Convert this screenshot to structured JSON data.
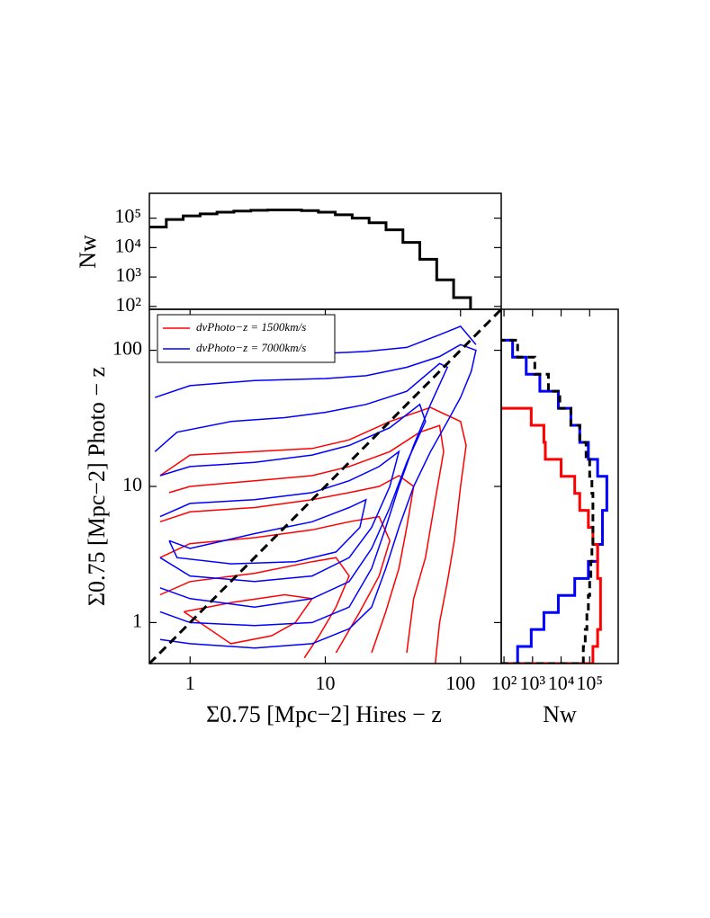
{
  "chart_data": [
    {
      "type": "contour",
      "xlabel": "Σ0.75  [Mpc−2] Hires − z",
      "ylabel": "Σ0.75  [Mpc−2] Photo − z",
      "xlim": [
        0.5,
        200
      ],
      "ylim": [
        0.5,
        200
      ],
      "log_x": true,
      "log_y": true,
      "xticks": [
        1,
        10,
        100
      ],
      "yticks": [
        1,
        10,
        100
      ],
      "legend": "upper left",
      "reference_line": {
        "x": [
          0.5,
          200
        ],
        "y": [
          0.5,
          200
        ],
        "color": "#000000",
        "dashed": true
      },
      "series": [
        {
          "name": "dvPhoto−z = 1500km/s",
          "color": "#ff0000",
          "contours": [
            {
              "x": [
                0.6,
                1,
                3,
                8,
                15,
                30,
                60,
                100,
                110,
                100,
                90,
                80,
                70,
                65
              ],
              "y": [
                12,
                17,
                18,
                19,
                22,
                30,
                38,
                30,
                20,
                10,
                4,
                2,
                1,
                0.5
              ]
            },
            {
              "x": [
                0.7,
                1,
                3,
                8,
                15,
                30,
                50,
                70,
                75,
                65,
                55,
                45,
                40
              ],
              "y": [
                9,
                10,
                11,
                12,
                14,
                18,
                25,
                28,
                18,
                8,
                3,
                1.5,
                0.6
              ]
            },
            {
              "x": [
                0.6,
                1,
                3,
                8,
                15,
                25,
                35,
                45,
                40,
                35,
                28,
                22
              ],
              "y": [
                5.5,
                6.5,
                7,
                8,
                9,
                10,
                12,
                10,
                5,
                2.5,
                1.2,
                0.6
              ]
            },
            {
              "x": [
                0.6,
                1,
                3,
                8,
                15,
                25,
                30,
                25,
                18,
                12
              ],
              "y": [
                3,
                3.8,
                4.2,
                4.8,
                5.5,
                6,
                4,
                2.2,
                1.2,
                0.6
              ]
            },
            {
              "x": [
                0.6,
                1,
                3,
                8,
                12,
                15,
                12,
                9,
                7
              ],
              "y": [
                1.6,
                2,
                2.3,
                2.8,
                3,
                2.2,
                1.3,
                0.8,
                0.55
              ]
            },
            {
              "x": [
                0.9,
                2,
                5,
                8,
                6,
                4,
                2,
                0.9
              ],
              "y": [
                1.2,
                1.4,
                1.6,
                1.5,
                1,
                0.8,
                0.7,
                1.2
              ]
            }
          ]
        },
        {
          "name": "dvPhoto−z = 7000km/s",
          "color": "#0000ff",
          "contours": [
            {
              "x": [
                0.55,
                1,
                3,
                10,
                20,
                40,
                70,
                100,
                130,
                120,
                100,
                80,
                60,
                45,
                35,
                28,
                22,
                15,
                8,
                3,
                1,
                0.6
              ],
              "y": [
                45,
                55,
                60,
                62,
                65,
                75,
                90,
                110,
                100,
                70,
                45,
                30,
                18,
                10,
                5,
                2.5,
                1.3,
                0.9,
                0.7,
                0.65,
                0.7,
                0.75
              ]
            },
            {
              "x": [
                3,
                5,
                10,
                20,
                40,
                70,
                100,
                130
              ],
              "y": [
                85,
                88,
                95,
                98,
                105,
                130,
                150,
                110
              ]
            },
            {
              "x": [
                0.55,
                0.8,
                2,
                5,
                10,
                20,
                40,
                70,
                80,
                60,
                45,
                35,
                28,
                22,
                15,
                8,
                3,
                1,
                0.6
              ],
              "y": [
                18,
                25,
                30,
                32,
                35,
                40,
                50,
                80,
                75,
                40,
                20,
                10,
                5,
                2.5,
                1.3,
                1,
                0.95,
                1,
                1.2
              ]
            },
            {
              "x": [
                0.6,
                1,
                3,
                8,
                15,
                30,
                50,
                55,
                40,
                30,
                22,
                15,
                8,
                3,
                1,
                0.6
              ],
              "y": [
                12,
                14,
                15,
                17,
                20,
                27,
                40,
                30,
                15,
                7,
                3.5,
                2,
                1.5,
                1.3,
                1.5,
                1.8
              ]
            },
            {
              "x": [
                0.6,
                1,
                3,
                8,
                15,
                25,
                35,
                30,
                22,
                15,
                8,
                3,
                1,
                0.6
              ],
              "y": [
                6,
                7.5,
                8,
                9,
                11,
                14,
                18,
                10,
                5,
                3,
                2.2,
                2,
                2.2,
                3
              ]
            },
            {
              "x": [
                0.7,
                1,
                3,
                8,
                15,
                20,
                18,
                12,
                6,
                2,
                0.8,
                0.7
              ],
              "y": [
                4,
                3.5,
                4.5,
                5.5,
                7,
                8,
                5,
                3.3,
                2.8,
                2.7,
                3,
                4
              ]
            }
          ]
        }
      ]
    },
    {
      "type": "histogram",
      "ylabel": "Nw",
      "log_y": true,
      "color": "#000000",
      "bins": [
        0.5,
        0.667,
        0.889,
        1.186,
        1.581,
        2.108,
        2.812,
        3.75,
        5.0,
        6.668,
        8.891,
        11.86,
        15.81,
        21.08,
        28.12,
        37.5,
        50.0,
        66.68,
        88.91,
        118.6
      ],
      "counts": [
        50000,
        90000,
        120000,
        140000,
        160000,
        175000,
        185000,
        190000,
        190000,
        180000,
        160000,
        130000,
        100000,
        70000,
        40000,
        15000,
        4000,
        800,
        200
      ],
      "ylim": [
        80,
        700000
      ],
      "yticks": [
        {
          "value": 100,
          "label": "10²"
        },
        {
          "value": 1000,
          "label": "10³"
        },
        {
          "value": 10000,
          "label": "10⁴"
        },
        {
          "value": 100000,
          "label": "10⁵"
        }
      ]
    },
    {
      "type": "histogram_horizontal",
      "xlabel": "Nw",
      "log_x": true,
      "bins": [
        0.5,
        0.667,
        0.889,
        1.186,
        1.581,
        2.108,
        2.812,
        3.75,
        5.0,
        6.668,
        8.891,
        11.86,
        15.81,
        21.08,
        28.12,
        37.5,
        50.0,
        66.68,
        88.91,
        118.6
      ],
      "xlim": [
        80,
        1000000
      ],
      "xticks": [
        {
          "value": 100,
          "label": "10²"
        },
        {
          "value": 1000,
          "label": "10³"
        },
        {
          "value": 10000,
          "label": "10⁴"
        },
        {
          "value": 100000,
          "label": "10⁵"
        }
      ],
      "series": [
        {
          "color": "#0000ff",
          "dashed": false,
          "values": [
            300,
            900,
            2500,
            8000,
            30000,
            90000,
            190000,
            280000,
            280000,
            400000,
            400000,
            190000,
            90000,
            45000,
            22000,
            8000,
            1800,
            600,
            200
          ]
        },
        {
          "color": "#ff0000",
          "dashed": false,
          "values": [
            130000,
            190000,
            240000,
            240000,
            240000,
            190000,
            190000,
            130000,
            90000,
            45000,
            30000,
            10000,
            2800,
            2500,
            900,
            null,
            null,
            null,
            null
          ]
        },
        {
          "color": "#000000",
          "dashed": true,
          "values": [
            60000,
            70000,
            80000,
            90000,
            100000,
            110000,
            120000,
            130000,
            130000,
            130000,
            120000,
            100000,
            75000,
            45000,
            22000,
            9000,
            3600,
            1200,
            300
          ]
        }
      ]
    }
  ]
}
